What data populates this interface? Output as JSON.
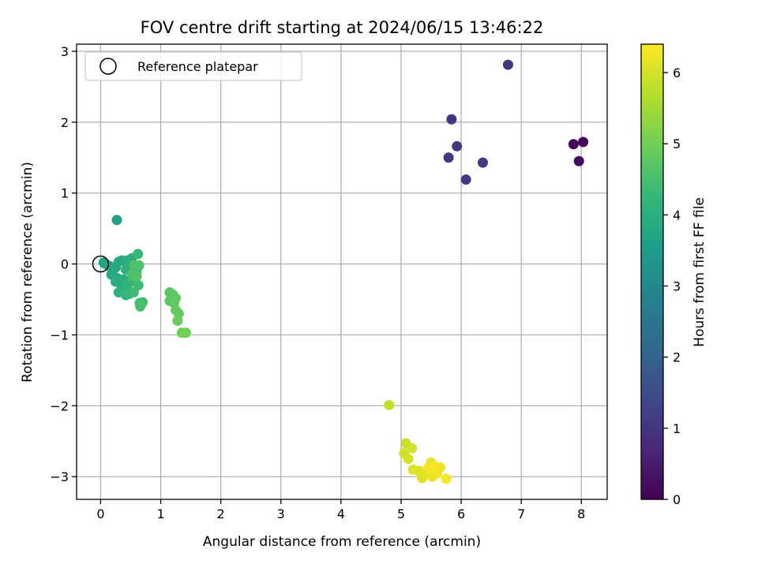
{
  "chart_data": {
    "type": "scatter",
    "title": "FOV centre drift starting at 2024/06/15 13:46:22",
    "xlabel": "Angular distance from reference (arcmin)",
    "ylabel": "Rotation from reference (arcmin)",
    "xlim": [
      -0.4,
      8.43
    ],
    "ylim": [
      -3.32,
      3.1
    ],
    "xticks": [
      0,
      1,
      2,
      3,
      4,
      5,
      6,
      7,
      8
    ],
    "yticks": [
      -3,
      -2,
      -1,
      0,
      1,
      2,
      3
    ],
    "xtick_labels": [
      "0",
      "1",
      "2",
      "3",
      "4",
      "5",
      "6",
      "7",
      "8"
    ],
    "ytick_labels": [
      "−3",
      "−2",
      "−1",
      "0",
      "1",
      "2",
      "3"
    ],
    "grid": true,
    "legend": {
      "position": "top-left",
      "label": "Reference platepar"
    },
    "reference_point": {
      "x": 0,
      "y": 0
    },
    "colorbar": {
      "label": "Hours from first FF file",
      "range": [
        0,
        6.4
      ],
      "ticks": [
        0,
        1,
        2,
        3,
        4,
        5,
        6
      ],
      "tick_labels": [
        "0",
        "1",
        "2",
        "3",
        "4",
        "5",
        "6"
      ],
      "colormap": [
        "#440154",
        "#482878",
        "#3e4989",
        "#31688e",
        "#26828e",
        "#1f9e89",
        "#35b779",
        "#6ece58",
        "#b5de2b",
        "#fde725"
      ]
    },
    "points": [
      {
        "x": 7.87,
        "y": 1.69,
        "h": 0.05
      },
      {
        "x": 8.03,
        "y": 1.72,
        "h": 0.1
      },
      {
        "x": 7.96,
        "y": 1.45,
        "h": 0.15
      },
      {
        "x": 6.78,
        "y": 2.81,
        "h": 1.0
      },
      {
        "x": 5.84,
        "y": 2.04,
        "h": 1.0
      },
      {
        "x": 5.93,
        "y": 1.66,
        "h": 1.05
      },
      {
        "x": 5.79,
        "y": 1.5,
        "h": 1.05
      },
      {
        "x": 6.36,
        "y": 1.43,
        "h": 1.1
      },
      {
        "x": 6.08,
        "y": 1.19,
        "h": 1.1
      },
      {
        "x": 0.27,
        "y": 0.62,
        "h": 3.6
      },
      {
        "x": 0.05,
        "y": 0.02,
        "h": 3.7
      },
      {
        "x": 0.08,
        "y": 0.0,
        "h": 3.7
      },
      {
        "x": 0.15,
        "y": -0.03,
        "h": 3.8
      },
      {
        "x": 0.2,
        "y": -0.1,
        "h": 3.8
      },
      {
        "x": 0.18,
        "y": -0.15,
        "h": 3.8
      },
      {
        "x": 0.25,
        "y": -0.05,
        "h": 3.85
      },
      {
        "x": 0.3,
        "y": 0.03,
        "h": 3.85
      },
      {
        "x": 0.35,
        "y": 0.05,
        "h": 3.9
      },
      {
        "x": 0.28,
        "y": -0.2,
        "h": 3.9
      },
      {
        "x": 0.32,
        "y": -0.27,
        "h": 3.9
      },
      {
        "x": 0.38,
        "y": -0.22,
        "h": 3.95
      },
      {
        "x": 0.25,
        "y": -0.25,
        "h": 3.95
      },
      {
        "x": 0.42,
        "y": -0.08,
        "h": 4.0
      },
      {
        "x": 0.45,
        "y": 0.05,
        "h": 4.0
      },
      {
        "x": 0.5,
        "y": -0.05,
        "h": 4.05
      },
      {
        "x": 0.52,
        "y": 0.08,
        "h": 4.05
      },
      {
        "x": 0.3,
        "y": -0.4,
        "h": 4.1
      },
      {
        "x": 0.4,
        "y": -0.35,
        "h": 4.1
      },
      {
        "x": 0.45,
        "y": -0.3,
        "h": 4.15
      },
      {
        "x": 0.48,
        "y": -0.42,
        "h": 4.2
      },
      {
        "x": 0.42,
        "y": -0.44,
        "h": 4.2
      },
      {
        "x": 0.55,
        "y": -0.2,
        "h": 4.25
      },
      {
        "x": 0.6,
        "y": -0.1,
        "h": 4.3
      },
      {
        "x": 0.62,
        "y": 0.14,
        "h": 4.3
      },
      {
        "x": 0.58,
        "y": -0.25,
        "h": 4.35
      },
      {
        "x": 0.55,
        "y": -0.4,
        "h": 4.4
      },
      {
        "x": 0.63,
        "y": -0.3,
        "h": 4.4
      },
      {
        "x": 0.65,
        "y": -0.55,
        "h": 4.45
      },
      {
        "x": 0.7,
        "y": -0.54,
        "h": 4.5
      },
      {
        "x": 0.66,
        "y": -0.6,
        "h": 4.5
      },
      {
        "x": 0.52,
        "y": -0.15,
        "h": 4.55
      },
      {
        "x": 0.56,
        "y": -0.02,
        "h": 4.6
      },
      {
        "x": 0.64,
        "y": -0.02,
        "h": 4.6
      },
      {
        "x": 0.6,
        "y": -0.17,
        "h": 4.65
      },
      {
        "x": 1.15,
        "y": -0.4,
        "h": 4.7
      },
      {
        "x": 1.2,
        "y": -0.43,
        "h": 4.75
      },
      {
        "x": 1.15,
        "y": -0.52,
        "h": 4.75
      },
      {
        "x": 1.22,
        "y": -0.55,
        "h": 4.8
      },
      {
        "x": 1.25,
        "y": -0.48,
        "h": 4.8
      },
      {
        "x": 1.25,
        "y": -0.65,
        "h": 4.85
      },
      {
        "x": 1.3,
        "y": -0.7,
        "h": 4.85
      },
      {
        "x": 1.28,
        "y": -0.8,
        "h": 4.9
      },
      {
        "x": 1.35,
        "y": -0.97,
        "h": 4.95
      },
      {
        "x": 1.42,
        "y": -0.97,
        "h": 5.0
      },
      {
        "x": 4.8,
        "y": -1.99,
        "h": 5.8
      },
      {
        "x": 5.08,
        "y": -2.53,
        "h": 5.9
      },
      {
        "x": 5.05,
        "y": -2.67,
        "h": 5.95
      },
      {
        "x": 5.18,
        "y": -2.6,
        "h": 5.95
      },
      {
        "x": 5.12,
        "y": -2.75,
        "h": 6.0
      },
      {
        "x": 5.2,
        "y": -2.9,
        "h": 6.05
      },
      {
        "x": 5.3,
        "y": -2.92,
        "h": 6.1
      },
      {
        "x": 5.35,
        "y": -3.02,
        "h": 6.1
      },
      {
        "x": 5.42,
        "y": -2.95,
        "h": 6.15
      },
      {
        "x": 5.5,
        "y": -2.8,
        "h": 6.15
      },
      {
        "x": 5.52,
        "y": -3.0,
        "h": 6.2
      },
      {
        "x": 5.58,
        "y": -2.9,
        "h": 6.2
      },
      {
        "x": 5.6,
        "y": -2.95,
        "h": 6.25
      },
      {
        "x": 5.65,
        "y": -2.87,
        "h": 6.25
      },
      {
        "x": 5.75,
        "y": -3.03,
        "h": 6.3
      },
      {
        "x": 5.45,
        "y": -2.88,
        "h": 6.3
      },
      {
        "x": 5.55,
        "y": -2.85,
        "h": 6.35
      }
    ]
  }
}
